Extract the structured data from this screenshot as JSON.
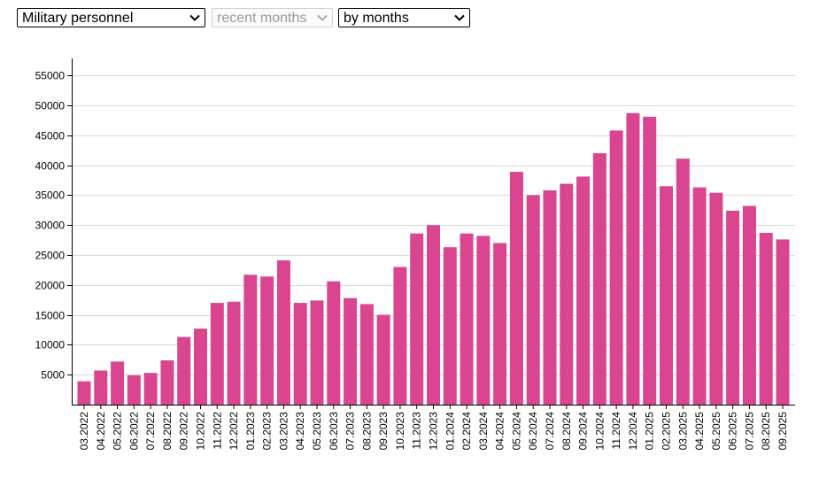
{
  "controls": {
    "dataset": {
      "value": "Military personnel"
    },
    "period": {
      "value": "recent months",
      "disabled": true
    },
    "grouping": {
      "value": "by months"
    }
  },
  "colors": {
    "bar": "#d9468f",
    "grid": "#d9d9d9",
    "axis": "#000000"
  },
  "chart_data": {
    "type": "bar",
    "title": "",
    "xlabel": "",
    "ylabel": "",
    "ylim": [
      0,
      57500
    ],
    "yticks": [
      5000,
      10000,
      15000,
      20000,
      25000,
      30000,
      35000,
      40000,
      45000,
      50000,
      55000
    ],
    "grid": true,
    "categories": [
      "03.2022",
      "04.2022",
      "05.2022",
      "06.2022",
      "07.2022",
      "08.2022",
      "09.2022",
      "10.2022",
      "11.2022",
      "12.2022",
      "01.2023",
      "02.2023",
      "03.2023",
      "04.2023",
      "05.2023",
      "06.2023",
      "07.2023",
      "08.2023",
      "09.2023",
      "10.2023",
      "11.2023",
      "12.2023",
      "01.2024",
      "02.2024",
      "03.2024",
      "04.2024",
      "05.2024",
      "06.2024",
      "07.2024",
      "08.2024",
      "09.2024",
      "10.2024",
      "11.2024",
      "12.2024",
      "01.2025",
      "02.2025",
      "03.2025",
      "04.2025",
      "05.2025",
      "06.2025",
      "07.2025",
      "08.2025",
      "09.2025"
    ],
    "values": [
      3900,
      5700,
      7200,
      4900,
      5300,
      7400,
      11300,
      12700,
      17000,
      17200,
      21700,
      21400,
      24100,
      17000,
      17400,
      20600,
      17800,
      16800,
      15000,
      23000,
      28600,
      30000,
      26300,
      28600,
      28200,
      27000,
      38900,
      35000,
      35800,
      36900,
      38100,
      42000,
      45800,
      48700,
      48100,
      36500,
      41100,
      36300,
      35400,
      32400,
      33200,
      28700,
      27600
    ]
  }
}
